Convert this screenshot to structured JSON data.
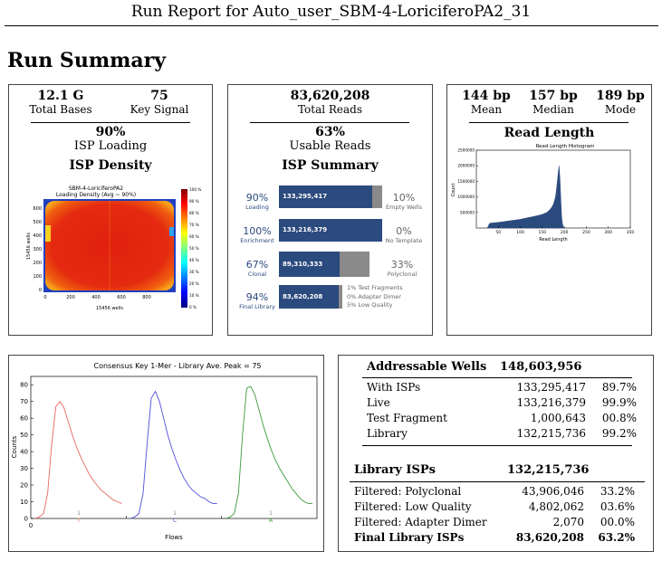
{
  "report": {
    "title": "Run Report for Auto_user_SBM-4-LoriciferoPA2_31",
    "section_title": "Run Summary"
  },
  "bases": {
    "total_bases_value": "12.1 G",
    "total_bases_label": "Total Bases",
    "key_signal_value": "75",
    "key_signal_label": "Key Signal",
    "isp_loading_value": "90%",
    "isp_loading_label": "ISP Loading",
    "isp_density_title": "ISP Density"
  },
  "density_plot": {
    "title_line1": "SBM-4-LoriciferoPA2",
    "title_line2": "Loading Density (Avg ~ 90%)",
    "ylabel": "15456 wells",
    "xlabel": "15456 wells",
    "x_ticks": [
      "0",
      "200",
      "400",
      "600",
      "800"
    ],
    "y_ticks": [
      "0",
      "100",
      "200",
      "300",
      "400",
      "500",
      "600"
    ],
    "colorbar_ticks": [
      "100 %",
      "90 %",
      "80 %",
      "70 %",
      "60 %",
      "50 %",
      "40 %",
      "30 %",
      "20 %",
      "10 %",
      "0 %"
    ]
  },
  "reads": {
    "total_reads_value": "83,620,208",
    "total_reads_label": "Total Reads",
    "usable_value": "63%",
    "usable_label": "Usable Reads",
    "isp_summary_title": "ISP Summary"
  },
  "isp_summary": {
    "rows": [
      {
        "pct": "90%",
        "label": "Loading",
        "bar_value": "133,295,417",
        "fill_fraction": 0.9,
        "right_pct": "10%",
        "right_label": "Empty Wells"
      },
      {
        "pct": "100%",
        "label": "Enrichment",
        "bar_value": "133,216,379",
        "fill_fraction": 1.0,
        "right_pct": "0%",
        "right_label": "No Template"
      },
      {
        "pct": "67%",
        "label": "Clonal",
        "bar_value": "89,310,333",
        "fill_fraction": 0.67,
        "right_pct": "33%",
        "right_label": "Polyclonal"
      },
      {
        "pct": "94%",
        "label": "Final Library",
        "bar_value": "83,620,208",
        "fill_fraction": 0.94,
        "notes": [
          "1% Test Fragments",
          "0% Adapter Dimer",
          "5% Low Quality"
        ]
      }
    ]
  },
  "read_length": {
    "mean_value": "144 bp",
    "mean_label": "Mean",
    "median_value": "157 bp",
    "median_label": "Median",
    "mode_value": "189 bp",
    "mode_label": "Mode",
    "title": "Read Length"
  },
  "key_plot": {
    "title": "Consensus Key 1-Mer - Library Ave. Peak = 75",
    "ylabel": "Counts",
    "xlabel": "Flows",
    "flow_labels": [
      {
        "num": "1",
        "base": "T"
      },
      {
        "num": "1",
        "base": "C"
      },
      {
        "num": "1",
        "base": "A"
      }
    ]
  },
  "wells": {
    "addressable_label": "Addressable Wells",
    "addressable_value": "148,603,956",
    "rows": [
      {
        "label": "With ISPs",
        "value": "133,295,417",
        "pct": "89.7%"
      },
      {
        "label": "Live",
        "value": "133,216,379",
        "pct": "99.9%"
      },
      {
        "label": "Test Fragment",
        "value": "1,000,643",
        "pct": "00.8%"
      },
      {
        "label": "Library",
        "value": "132,215,736",
        "pct": "99.2%"
      }
    ],
    "library_isps_label": "Library ISPs",
    "library_isps_value": "132,215,736",
    "filter_rows": [
      {
        "label": "Filtered: Polyclonal",
        "value": "43,906,046",
        "pct": "33.2%"
      },
      {
        "label": "Filtered: Low Quality",
        "value": "4,802,062",
        "pct": "03.6%"
      },
      {
        "label": "Filtered: Adapter Dimer",
        "value": "2,070",
        "pct": "00.0%"
      }
    ],
    "final_label": "Final Library ISPs",
    "final_value": "83,620,208",
    "final_pct": "63.2%"
  },
  "chart_data": [
    {
      "type": "area",
      "title": "Read Length Histogram",
      "xlabel": "Read Length",
      "ylabel": "Count",
      "xlim": [
        0,
        350
      ],
      "ylim": [
        0,
        2500000
      ],
      "x_ticks": [
        50,
        100,
        150,
        200,
        250,
        300,
        350
      ],
      "y_ticks": [
        500000,
        1000000,
        1500000,
        2000000,
        2500000
      ],
      "x": [
        25,
        30,
        40,
        50,
        60,
        70,
        80,
        90,
        100,
        110,
        120,
        130,
        140,
        150,
        160,
        165,
        170,
        175,
        180,
        183,
        186,
        188,
        190,
        192,
        194,
        196,
        198,
        200
      ],
      "y": [
        0,
        150000,
        170000,
        180000,
        200000,
        220000,
        240000,
        260000,
        280000,
        310000,
        340000,
        370000,
        400000,
        440000,
        500000,
        560000,
        640000,
        760000,
        1000000,
        1350000,
        1750000,
        2000000,
        1600000,
        900000,
        350000,
        120000,
        40000,
        0
      ],
      "color": "#2b4a7e"
    },
    {
      "type": "line",
      "title": "Consensus Key 1-Mer - Library Ave. Peak = 75",
      "xlabel": "Flows",
      "ylabel": "Counts",
      "ylim": [
        0,
        85
      ],
      "y_ticks": [
        0,
        10,
        20,
        30,
        40,
        50,
        60,
        70,
        80
      ],
      "x_ticks": [
        0
      ],
      "series": [
        {
          "name": "T",
          "color": "#e8675f",
          "values": [
            0,
            1,
            3,
            15,
            45,
            67,
            70,
            66,
            58,
            50,
            43,
            37,
            32,
            27,
            23,
            20,
            17,
            15,
            13,
            11,
            10,
            9
          ]
        },
        {
          "name": "C",
          "color": "#4f4fd8",
          "values": [
            0,
            1,
            3,
            15,
            45,
            72,
            76,
            70,
            60,
            50,
            42,
            35,
            29,
            24,
            20,
            17,
            15,
            13,
            12,
            10,
            9,
            9
          ]
        },
        {
          "name": "A",
          "color": "#3c9a3c",
          "values": [
            0,
            1,
            3,
            15,
            50,
            78,
            79,
            74,
            65,
            56,
            48,
            41,
            35,
            30,
            26,
            22,
            18,
            15,
            12,
            10,
            9,
            9
          ]
        }
      ]
    }
  ]
}
